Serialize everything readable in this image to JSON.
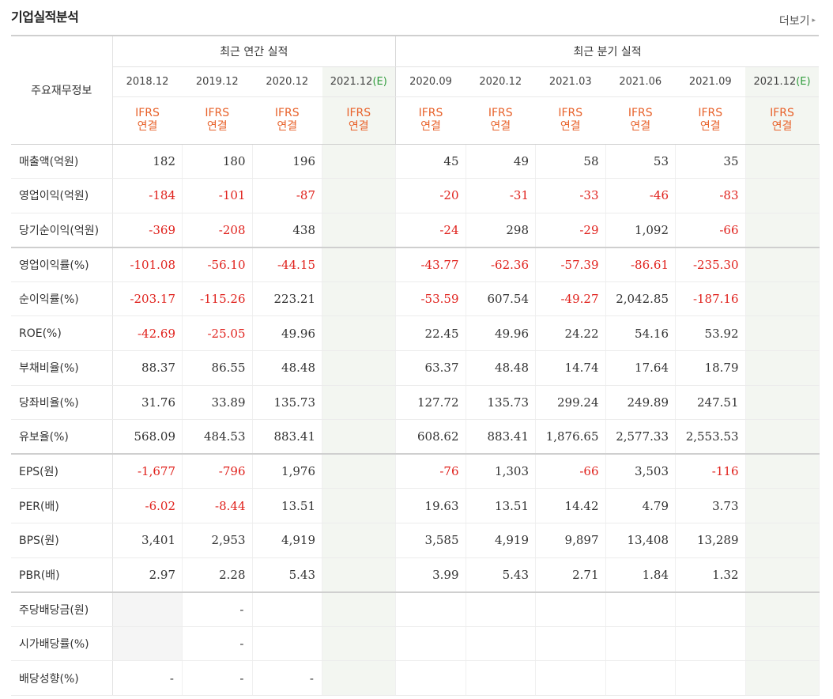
{
  "section_title": "기업실적분석",
  "more_label": "더보기",
  "more_arrow": "▸",
  "header": {
    "label": "주요재무정보",
    "annual_group": "최근 연간 실적",
    "quarter_group": "최근 분기 실적",
    "periods": [
      "2018.12",
      "2019.12",
      "2020.12",
      "2021.12",
      "2020.09",
      "2020.12",
      "2021.03",
      "2021.06",
      "2021.09",
      "2021.12"
    ],
    "estimate_mark": "(E)",
    "ifrs_line1": "IFRS",
    "ifrs_line2": "연결"
  },
  "rows": [
    {
      "label": "매출액(억원)",
      "values": [
        "182",
        "180",
        "196",
        "",
        "45",
        "49",
        "58",
        "53",
        "35",
        ""
      ]
    },
    {
      "label": "영업이익(억원)",
      "values": [
        "-184",
        "-101",
        "-87",
        "",
        "-20",
        "-31",
        "-33",
        "-46",
        "-83",
        ""
      ]
    },
    {
      "label": "당기순이익(억원)",
      "values": [
        "-369",
        "-208",
        "438",
        "",
        "-24",
        "298",
        "-29",
        "1,092",
        "-66",
        ""
      ]
    },
    {
      "label": "영업이익률(%)",
      "values": [
        "-101.08",
        "-56.10",
        "-44.15",
        "",
        "-43.77",
        "-62.36",
        "-57.39",
        "-86.61",
        "-235.30",
        ""
      ]
    },
    {
      "label": "순이익률(%)",
      "values": [
        "-203.17",
        "-115.26",
        "223.21",
        "",
        "-53.59",
        "607.54",
        "-49.27",
        "2,042.85",
        "-187.16",
        ""
      ]
    },
    {
      "label": "ROE(%)",
      "values": [
        "-42.69",
        "-25.05",
        "49.96",
        "",
        "22.45",
        "49.96",
        "24.22",
        "54.16",
        "53.92",
        ""
      ]
    },
    {
      "label": "부채비율(%)",
      "values": [
        "88.37",
        "86.55",
        "48.48",
        "",
        "63.37",
        "48.48",
        "14.74",
        "17.64",
        "18.79",
        ""
      ]
    },
    {
      "label": "당좌비율(%)",
      "values": [
        "31.76",
        "33.89",
        "135.73",
        "",
        "127.72",
        "135.73",
        "299.24",
        "249.89",
        "247.51",
        ""
      ]
    },
    {
      "label": "유보율(%)",
      "values": [
        "568.09",
        "484.53",
        "883.41",
        "",
        "608.62",
        "883.41",
        "1,876.65",
        "2,577.33",
        "2,553.53",
        ""
      ]
    },
    {
      "label": "EPS(원)",
      "values": [
        "-1,677",
        "-796",
        "1,976",
        "",
        "-76",
        "1,303",
        "-66",
        "3,503",
        "-116",
        ""
      ]
    },
    {
      "label": "PER(배)",
      "values": [
        "-6.02",
        "-8.44",
        "13.51",
        "",
        "19.63",
        "13.51",
        "14.42",
        "4.79",
        "3.73",
        ""
      ]
    },
    {
      "label": "BPS(원)",
      "values": [
        "3,401",
        "2,953",
        "4,919",
        "",
        "3,585",
        "4,919",
        "9,897",
        "13,408",
        "13,289",
        ""
      ]
    },
    {
      "label": "PBR(배)",
      "values": [
        "2.97",
        "2.28",
        "5.43",
        "",
        "3.99",
        "5.43",
        "2.71",
        "1.84",
        "1.32",
        ""
      ]
    },
    {
      "label": "주당배당금(원)",
      "values": [
        "",
        "-",
        "",
        "",
        "",
        "",
        "",
        "",
        "",
        ""
      ]
    },
    {
      "label": "시가배당률(%)",
      "values": [
        "",
        "-",
        "",
        "",
        "",
        "",
        "",
        "",
        "",
        ""
      ]
    },
    {
      "label": "배당성향(%)",
      "values": [
        "-",
        "-",
        "-",
        "",
        "",
        "",
        "",
        "",
        "",
        ""
      ]
    }
  ],
  "colors": {
    "negative": "#e0221d",
    "ifrs": "#e8632c",
    "estimate_mark": "#2e9b3a",
    "estimate_bg": "#f3f6f1"
  }
}
